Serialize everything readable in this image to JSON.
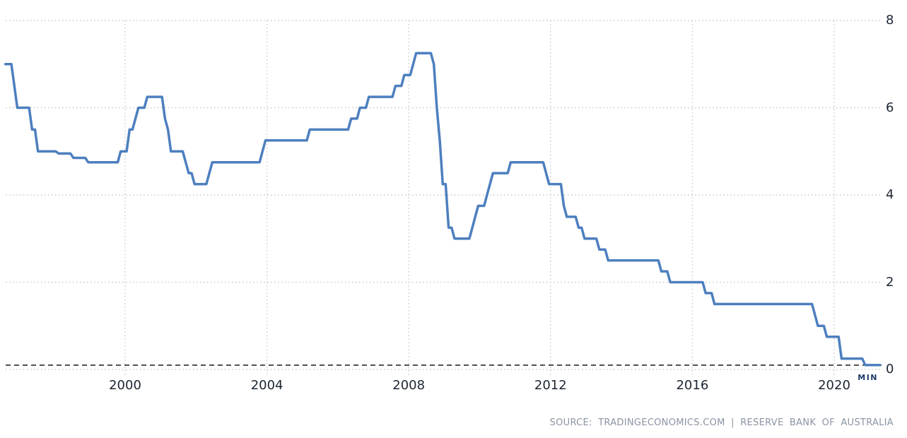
{
  "source_line": "SOURCE: TRADINGECONOMICS.COM | RESERVE BANK OF AUSTRALIA",
  "chart_data": {
    "type": "line",
    "title": "",
    "xlabel": "",
    "ylabel": "",
    "x_ticks": [
      2000,
      2004,
      2008,
      2012,
      2016,
      2020
    ],
    "x_tick_labels": [
      "2000",
      "2004",
      "2008",
      "2012",
      "2016",
      "2020"
    ],
    "y_ticks": [
      0,
      2,
      4,
      6,
      8
    ],
    "y_tick_labels": [
      "0",
      "2",
      "4",
      "6",
      "8"
    ],
    "ylim": [
      0,
      8
    ],
    "x_range_years": [
      1996.6,
      2021.35
    ],
    "grid": true,
    "legend_position": "none",
    "y_axis_side": "right",
    "min_marker": {
      "label": "MIN",
      "value": 0.1
    },
    "colors": {
      "line": "#4d7fbf",
      "grid": "#cccccc",
      "min_line": "#4d4d4d",
      "tick_label": "#1d2633",
      "min_label": "#1f3a68",
      "source_text": "#8a94a3",
      "background": "#ffffff"
    },
    "series": [
      {
        "name": "interest-rate-percent",
        "step_points": [
          [
            "1996-08",
            7.0
          ],
          [
            "1996-11",
            6.5
          ],
          [
            "1996-12",
            6.0
          ],
          [
            "1997-05",
            5.5
          ],
          [
            "1997-07",
            5.0
          ],
          [
            "1998-02",
            4.95
          ],
          [
            "1998-07",
            4.85
          ],
          [
            "1998-12",
            4.75
          ],
          [
            "1999-11",
            5.0
          ],
          [
            "2000-02",
            5.5
          ],
          [
            "2000-04",
            5.75
          ],
          [
            "2000-05",
            6.0
          ],
          [
            "2000-08",
            6.25
          ],
          [
            "2001-02",
            5.75
          ],
          [
            "2001-03",
            5.5
          ],
          [
            "2001-04",
            5.0
          ],
          [
            "2001-09",
            4.75
          ],
          [
            "2001-10",
            4.5
          ],
          [
            "2001-12",
            4.25
          ],
          [
            "2002-05",
            4.5
          ],
          [
            "2002-06",
            4.75
          ],
          [
            "2003-11",
            5.0
          ],
          [
            "2003-12",
            5.25
          ],
          [
            "2005-03",
            5.5
          ],
          [
            "2006-05",
            5.75
          ],
          [
            "2006-08",
            6.0
          ],
          [
            "2006-11",
            6.25
          ],
          [
            "2007-08",
            6.5
          ],
          [
            "2007-11",
            6.75
          ],
          [
            "2008-02",
            7.0
          ],
          [
            "2008-03",
            7.25
          ],
          [
            "2008-09",
            7.0
          ],
          [
            "2008-10",
            6.0
          ],
          [
            "2008-11",
            5.25
          ],
          [
            "2008-12",
            4.25
          ],
          [
            "2009-02",
            3.25
          ],
          [
            "2009-04",
            3.0
          ],
          [
            "2009-10",
            3.25
          ],
          [
            "2009-11",
            3.5
          ],
          [
            "2009-12",
            3.75
          ],
          [
            "2010-03",
            4.0
          ],
          [
            "2010-04",
            4.25
          ],
          [
            "2010-05",
            4.5
          ],
          [
            "2010-11",
            4.75
          ],
          [
            "2011-11",
            4.5
          ],
          [
            "2011-12",
            4.25
          ],
          [
            "2012-05",
            3.75
          ],
          [
            "2012-06",
            3.5
          ],
          [
            "2012-10",
            3.25
          ],
          [
            "2012-12",
            3.0
          ],
          [
            "2013-05",
            2.75
          ],
          [
            "2013-08",
            2.5
          ],
          [
            "2015-02",
            2.25
          ],
          [
            "2015-05",
            2.0
          ],
          [
            "2016-05",
            1.75
          ],
          [
            "2016-08",
            1.5
          ],
          [
            "2019-06",
            1.25
          ],
          [
            "2019-07",
            1.0
          ],
          [
            "2019-10",
            0.75
          ],
          [
            "2020-03",
            0.25
          ],
          [
            "2020-11",
            0.1
          ],
          [
            "2021-04",
            0.1
          ]
        ]
      }
    ]
  }
}
